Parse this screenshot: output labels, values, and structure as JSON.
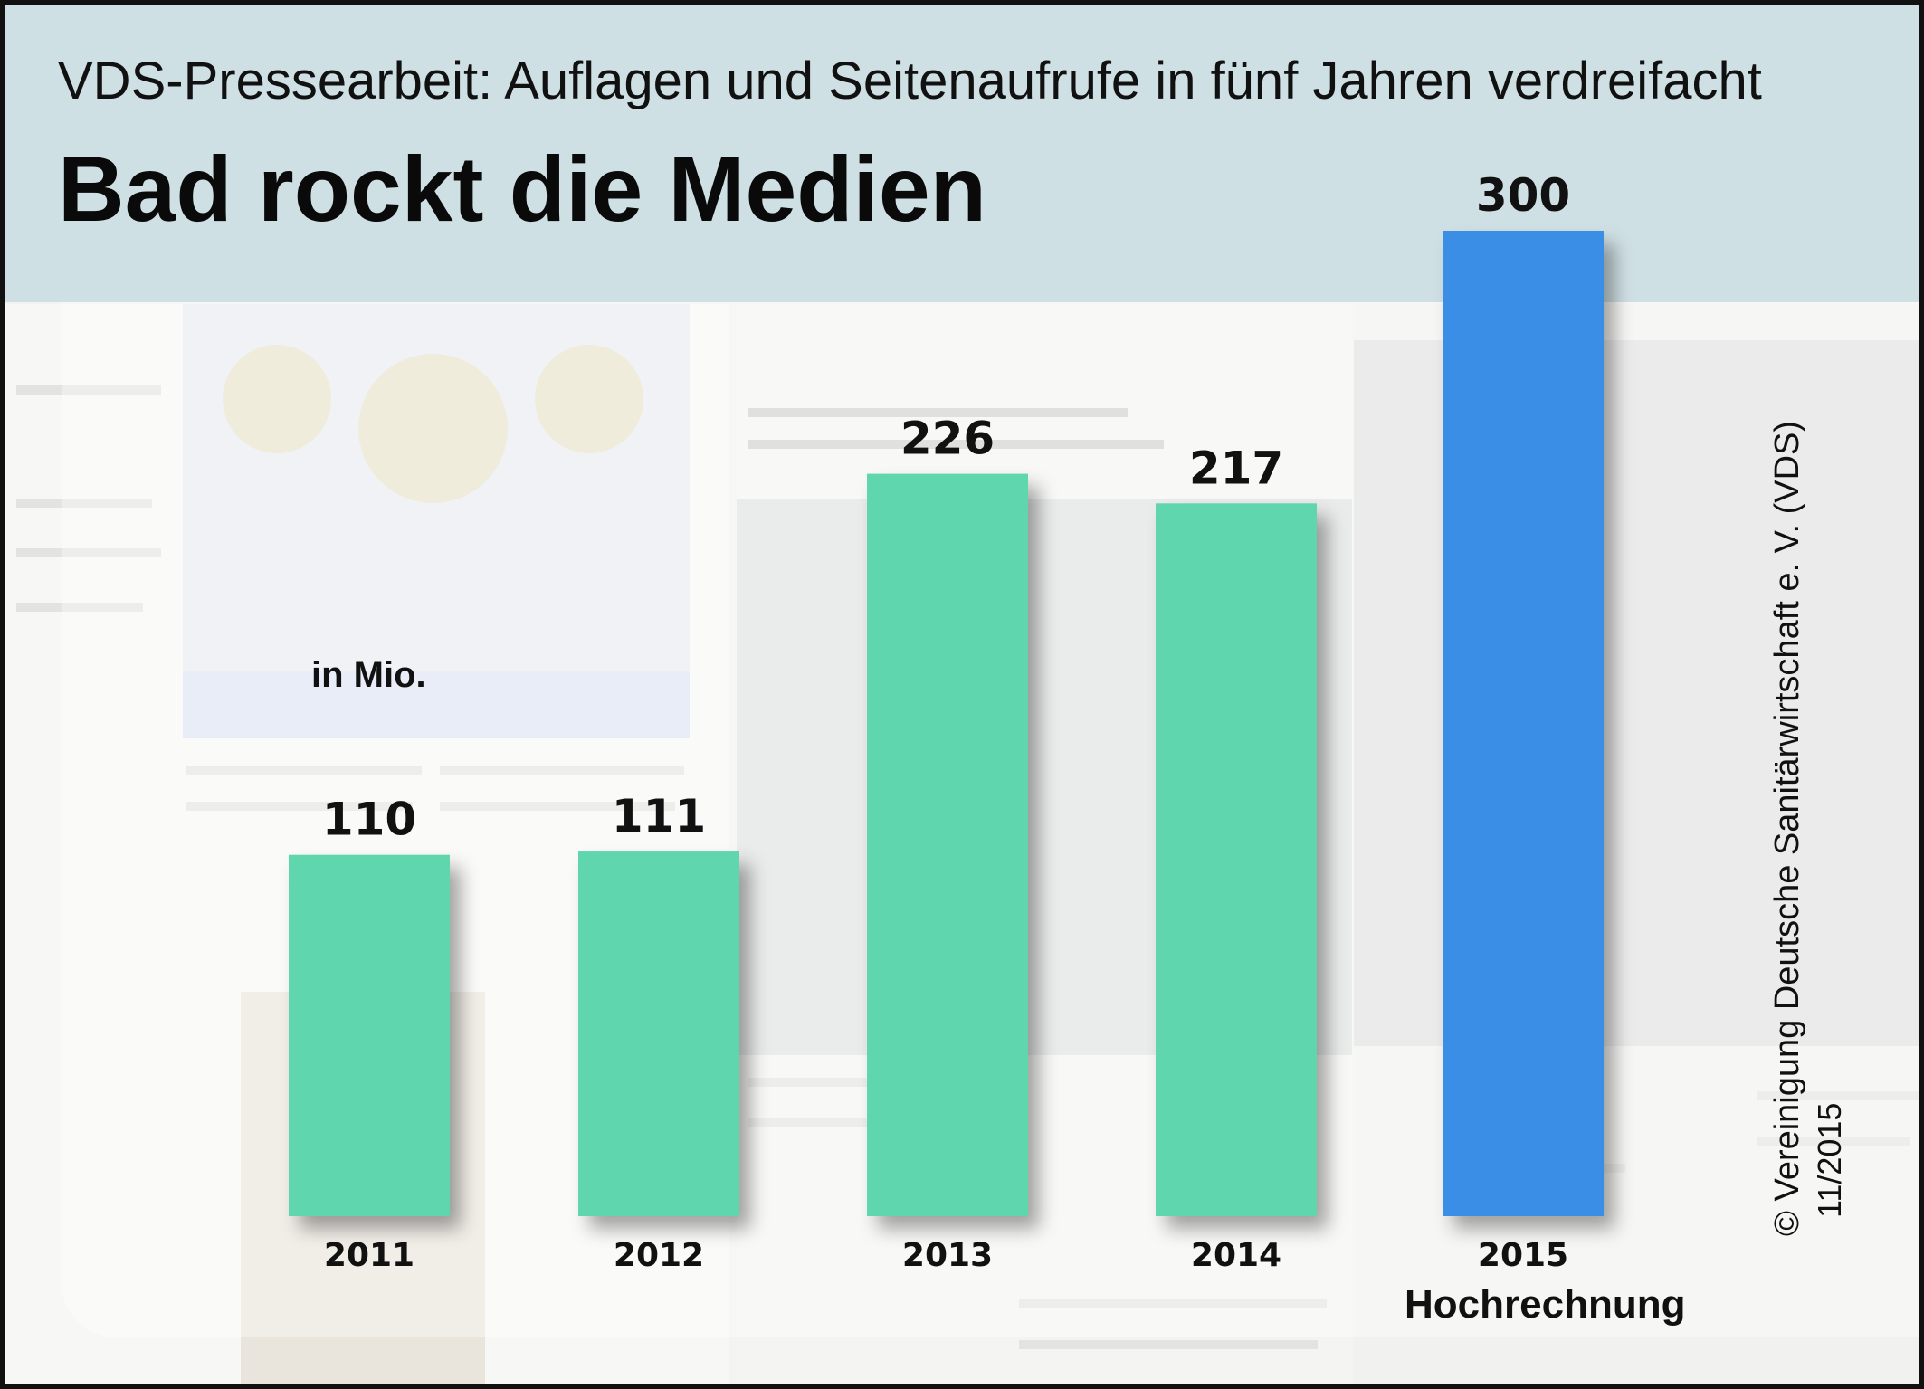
{
  "header": {
    "subtitle": "VDS-Pressearbeit: Auflagen und Seitenaufrufe in fünf Jahren verdreifacht",
    "title": "Bad rockt die Medien"
  },
  "unit_label": "in Mio.",
  "annotation": "Hochrechnung",
  "credit": {
    "copyright": "© Vereinigung Deutsche Sanitärwirtschaft e. V. (VDS)",
    "date": "11/2015"
  },
  "colors": {
    "header_bg": "#cfe0e4",
    "bar_actual": "#5ed6ad",
    "bar_projection": "#3a8ee6"
  },
  "chart_data": {
    "type": "bar",
    "title": "Bad rockt die Medien",
    "subtitle": "VDS-Pressearbeit: Auflagen und Seitenaufrufe in fünf Jahren verdreifacht",
    "ylabel": "in Mio.",
    "categories": [
      "2011",
      "2012",
      "2013",
      "2014",
      "2015"
    ],
    "values": [
      110,
      111,
      226,
      217,
      300
    ],
    "projection": [
      false,
      false,
      false,
      false,
      true
    ],
    "annotations": [
      {
        "category": "2015",
        "text": "Hochrechnung"
      }
    ],
    "ylim": [
      0,
      300
    ],
    "grid": false,
    "legend": "none"
  }
}
